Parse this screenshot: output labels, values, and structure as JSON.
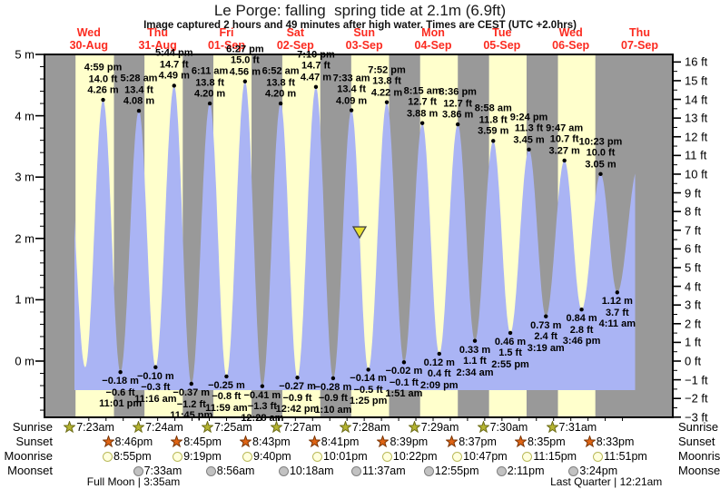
{
  "title": "Le Porge: falling  spring tide at 2.1m (6.9ft)",
  "subtitle": "Image captured 2 hours and 49 minutes after high water. Times are CEST (UTC +2.0hrs)",
  "colors": {
    "day_band": "#ffffcc",
    "night_band": "#999999",
    "tide_fill": "#aab4f4",
    "day_label_red": "#fb2b20",
    "marker_fill": "#e8e030",
    "marker_stroke": "#444444",
    "sunrise_star": "#b5b431",
    "sunrise_star_stroke": "#6b6b15",
    "sunset_star": "#e06414",
    "sunset_star_stroke": "#7a3505",
    "moonrise_fill": "#ffffdd",
    "moonrise_stroke": "#b9b95a",
    "moonset_fill": "#c2c2c2",
    "moonset_stroke": "#808080"
  },
  "chart_data": {
    "type": "area",
    "title": "Le Porge: falling  spring tide at 2.1m (6.9ft)",
    "ylabel_left_unit": "m",
    "ylabel_right_unit": "ft",
    "y_left_ticks": [
      "5 m",
      "4 m",
      "3 m",
      "2 m",
      "1 m",
      "0 m"
    ],
    "y_left_values": [
      5,
      4,
      3,
      2,
      1,
      0
    ],
    "y_right_min_ft": -3,
    "y_right_max_ft": 16,
    "ylim_m": [
      -0.9144,
      5
    ],
    "grid": false,
    "days": [
      {
        "name": "Wed",
        "date": "30-Aug"
      },
      {
        "name": "Thu",
        "date": "31-Aug"
      },
      {
        "name": "Fri",
        "date": "01-Sep"
      },
      {
        "name": "Sat",
        "date": "02-Sep"
      },
      {
        "name": "Sun",
        "date": "03-Sep"
      },
      {
        "name": "Mon",
        "date": "04-Sep"
      },
      {
        "name": "Tue",
        "date": "05-Sep"
      },
      {
        "name": "Wed",
        "date": "06-Sep"
      },
      {
        "name": "Thu",
        "date": "07-Sep"
      }
    ],
    "high_tides": [
      {
        "day": 0,
        "time": "4:59 pm",
        "ft_label": "14.0 ft",
        "m_label": "4.26 m",
        "height_m": 4.26
      },
      {
        "day": 1,
        "time": "5:28 am",
        "ft_label": "13.4 ft",
        "m_label": "4.08 m",
        "height_m": 4.08
      },
      {
        "day": 1,
        "time": "5:44 pm",
        "ft_label": "14.7 ft",
        "m_label": "4.49 m",
        "height_m": 4.49
      },
      {
        "day": 2,
        "time": "6:11 am",
        "ft_label": "13.8 ft",
        "m_label": "4.20 m",
        "height_m": 4.2
      },
      {
        "day": 2,
        "time": "6:27 pm",
        "ft_label": "15.0 ft",
        "m_label": "4.56 m",
        "height_m": 4.56
      },
      {
        "day": 3,
        "time": "6:52 am",
        "ft_label": "13.8 ft",
        "m_label": "4.20 m",
        "height_m": 4.2
      },
      {
        "day": 3,
        "time": "7:10 pm",
        "ft_label": "14.7 ft",
        "m_label": "4.47 m",
        "height_m": 4.47
      },
      {
        "day": 4,
        "time": "7:33 am",
        "ft_label": "13.4 ft",
        "m_label": "4.09 m",
        "height_m": 4.09
      },
      {
        "day": 4,
        "time": "7:52 pm",
        "ft_label": "13.8 ft",
        "m_label": "4.22 m",
        "height_m": 4.22
      },
      {
        "day": 5,
        "time": "8:15 am",
        "ft_label": "12.7 ft",
        "m_label": "3.88 m",
        "height_m": 3.88
      },
      {
        "day": 5,
        "time": "8:36 pm",
        "ft_label": "12.7 ft",
        "m_label": "3.86 m",
        "height_m": 3.86
      },
      {
        "day": 6,
        "time": "8:58 am",
        "ft_label": "11.8 ft",
        "m_label": "3.59 m",
        "height_m": 3.59
      },
      {
        "day": 6,
        "time": "9:24 pm",
        "ft_label": "11.3 ft",
        "m_label": "3.45 m",
        "height_m": 3.45
      },
      {
        "day": 7,
        "time": "9:47 am",
        "ft_label": "10.7 ft",
        "m_label": "3.27 m",
        "height_m": 3.27
      },
      {
        "day": 7,
        "time": "10:23 pm",
        "ft_label": "10.0 ft",
        "m_label": "3.05 m",
        "height_m": 3.05
      }
    ],
    "low_tides": [
      {
        "day": 0,
        "time": "11:01 pm",
        "ft_label": "−0.6 ft",
        "m_label": "−0.18 m",
        "height_m": -0.18
      },
      {
        "day": 1,
        "time": "11:16 am",
        "ft_label": "−0.3 ft",
        "m_label": "−0.10 m",
        "height_m": -0.1
      },
      {
        "day": 1,
        "time": "11:45 pm",
        "ft_label": "−1.2 ft",
        "m_label": "−0.37 m",
        "height_m": -0.37
      },
      {
        "day": 2,
        "time": "11:59 am",
        "ft_label": "−0.8 ft",
        "m_label": "−0.25 m",
        "height_m": -0.25
      },
      {
        "day": 3,
        "time": "12:28 am",
        "ft_label": "−1.3 ft",
        "m_label": "−0.41 m",
        "height_m": -0.41
      },
      {
        "day": 3,
        "time": "12:42 pm",
        "ft_label": "−0.9 ft",
        "m_label": "−0.27 m",
        "height_m": -0.27
      },
      {
        "day": 4,
        "time": "1:10 am",
        "ft_label": "−0.9 ft",
        "m_label": "−0.28 m",
        "height_m": -0.28
      },
      {
        "day": 4,
        "time": "1:25 pm",
        "ft_label": "−0.5 ft",
        "m_label": "−0.14 m",
        "height_m": -0.14
      },
      {
        "day": 5,
        "time": "1:51 am",
        "ft_label": "−0.1 ft",
        "m_label": "−0.02 m",
        "height_m": -0.02
      },
      {
        "day": 5,
        "time": "2:09 pm",
        "ft_label": "0.4 ft",
        "m_label": "0.12 m",
        "height_m": 0.12
      },
      {
        "day": 6,
        "time": "2:34 am",
        "ft_label": "1.1 ft",
        "m_label": "0.33 m",
        "height_m": 0.33
      },
      {
        "day": 6,
        "time": "2:55 pm",
        "ft_label": "1.5 ft",
        "m_label": "0.46 m",
        "height_m": 0.46
      },
      {
        "day": 7,
        "time": "3:19 am",
        "ft_label": "2.4 ft",
        "m_label": "0.73 m",
        "height_m": 0.73
      },
      {
        "day": 7,
        "time": "3:46 pm",
        "ft_label": "2.8 ft",
        "m_label": "0.84 m",
        "height_m": 0.84
      },
      {
        "day": 8,
        "time": "4:11 am",
        "ft_label": "3.7 ft",
        "m_label": "1.12 m",
        "height_m": 1.12
      }
    ],
    "current_marker": {
      "day": 4,
      "time": "10:22 am",
      "height_m": 2.1,
      "state": "falling"
    },
    "unlabeled_anchors": {
      "start_high": {
        "t_hours": 4.0,
        "height_m": 4.0
      },
      "start_low": {
        "t_hours": 10.75,
        "height_m": -0.1
      },
      "end_high": {
        "t_hours": 203.4,
        "height_m": 3.15
      },
      "curve_clip_hours": [
        7.0,
        202.42
      ]
    }
  },
  "astro": {
    "rows": [
      {
        "id": "sunrise",
        "label": "Sunrise",
        "icon": "sunrise-star-icon",
        "events": [
          {
            "day": 0,
            "time": "7:23am"
          },
          {
            "day": 1,
            "time": "7:24am"
          },
          {
            "day": 2,
            "time": "7:25am"
          },
          {
            "day": 3,
            "time": "7:27am"
          },
          {
            "day": 4,
            "time": "7:28am"
          },
          {
            "day": 5,
            "time": "7:29am"
          },
          {
            "day": 6,
            "time": "7:30am"
          },
          {
            "day": 7,
            "time": "7:31am"
          }
        ]
      },
      {
        "id": "sunset",
        "label": "Sunset",
        "icon": "sunset-star-icon",
        "events": [
          {
            "day": 0,
            "time": "8:46pm"
          },
          {
            "day": 1,
            "time": "8:45pm"
          },
          {
            "day": 2,
            "time": "8:43pm"
          },
          {
            "day": 3,
            "time": "8:41pm"
          },
          {
            "day": 4,
            "time": "8:39pm"
          },
          {
            "day": 5,
            "time": "8:37pm"
          },
          {
            "day": 6,
            "time": "8:35pm"
          },
          {
            "day": 7,
            "time": "8:33pm"
          }
        ]
      },
      {
        "id": "moonrise",
        "label": "Moonrise",
        "icon": "moonrise-circle-icon",
        "events": [
          {
            "day": 0,
            "time": "8:55pm"
          },
          {
            "day": 1,
            "time": "9:19pm"
          },
          {
            "day": 2,
            "time": "9:40pm"
          },
          {
            "day": 3,
            "time": "10:01pm"
          },
          {
            "day": 4,
            "time": "10:22pm"
          },
          {
            "day": 5,
            "time": "10:47pm"
          },
          {
            "day": 6,
            "time": "11:15pm"
          },
          {
            "day": 7,
            "time": "11:51pm"
          }
        ]
      },
      {
        "id": "moonset",
        "label": "Moonset",
        "icon": "moonset-circle-icon",
        "events": [
          {
            "day": 1,
            "time": "7:33am"
          },
          {
            "day": 2,
            "time": "8:56am"
          },
          {
            "day": 3,
            "time": "10:18am"
          },
          {
            "day": 4,
            "time": "11:37am"
          },
          {
            "day": 5,
            "time": "12:55pm"
          },
          {
            "day": 6,
            "time": "2:11pm"
          },
          {
            "day": 7,
            "time": "3:24pm"
          }
        ]
      }
    ],
    "notes": [
      {
        "text": "Full Moon | 3:35am",
        "day": 1,
        "time": "3:35am"
      },
      {
        "text": "Last Quarter | 12:21am",
        "day": 8,
        "time": "12:21am"
      }
    ]
  }
}
